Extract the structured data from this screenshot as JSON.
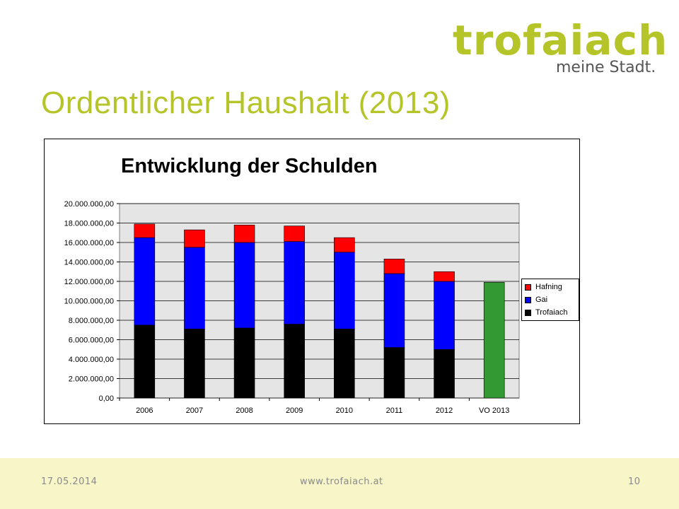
{
  "colors": {
    "accent": "#b5c428",
    "logo_tag": "#555555",
    "plot_area": "#e5e5e5",
    "footer_band": "#f8f5c8"
  },
  "logo": {
    "word": "trofaiach",
    "tagline": "meine Stadt."
  },
  "slide": {
    "title": "Ordentlicher Haushalt (2013)"
  },
  "footer": {
    "date": "17.05.2014",
    "url": "www.trofaiach.at",
    "page": "10"
  },
  "chart_data": {
    "type": "bar",
    "stacked": true,
    "title": "Entwicklung der Schulden",
    "categories": [
      "2006",
      "2007",
      "2008",
      "2009",
      "2010",
      "2011",
      "2012",
      "VO 2013"
    ],
    "series": [
      {
        "name": "Trofaiach",
        "color": "#000000",
        "values": [
          7500000,
          7100000,
          7200000,
          7600000,
          7100000,
          5200000,
          5000000,
          0
        ]
      },
      {
        "name": "Gai",
        "color": "#0000ff",
        "values": [
          9000000,
          8400000,
          8800000,
          8500000,
          7900000,
          7600000,
          7000000,
          0
        ]
      },
      {
        "name": "Hafning",
        "color": "#ff0000",
        "values": [
          1400000,
          1800000,
          1800000,
          1600000,
          1500000,
          1500000,
          1000000,
          0
        ]
      },
      {
        "color": "#339933",
        "values": [
          0,
          0,
          0,
          0,
          0,
          0,
          0,
          11900000
        ]
      }
    ],
    "legend_order": [
      2,
      1,
      0
    ],
    "y_ticks": [
      "0,00",
      "2.000.000,00",
      "4.000.000,00",
      "6.000.000,00",
      "8.000.000,00",
      "10.000.000,00",
      "12.000.000,00",
      "14.000.000,00",
      "16.000.000,00",
      "18.000.000,00",
      "20.000.000,00"
    ],
    "ylim": [
      0,
      20000000
    ],
    "grid": true,
    "legend_position": "right"
  }
}
